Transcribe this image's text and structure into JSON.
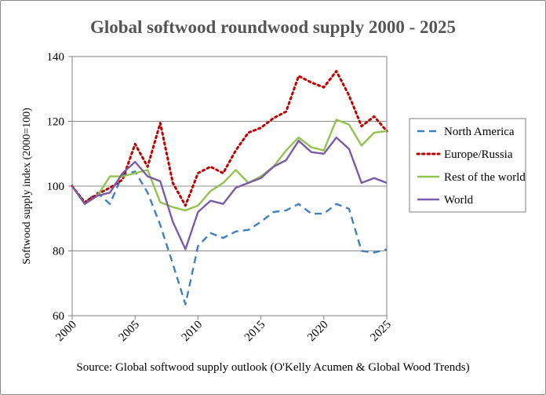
{
  "chart_data": {
    "type": "line",
    "title": "Global softwood roundwood supply 2000 - 2025",
    "ylabel": "Softwood supply index (2000=100)",
    "xlabel": "",
    "source": "Source: Global softwood supply outlook (O'Kelly Acumen & Global Wood Trends)",
    "xlim": [
      2000,
      2025
    ],
    "ylim": [
      60,
      140
    ],
    "xticks": [
      "2000",
      "2005",
      "2010",
      "2015",
      "2020",
      "2025"
    ],
    "yticks": [
      "60",
      "80",
      "100",
      "120",
      "140"
    ],
    "grid": "horizontal",
    "legend_position": "right",
    "x": [
      2000,
      2001,
      2002,
      2003,
      2004,
      2005,
      2006,
      2007,
      2008,
      2009,
      2010,
      2011,
      2012,
      2013,
      2014,
      2015,
      2016,
      2017,
      2018,
      2019,
      2020,
      2021,
      2022,
      2023,
      2024,
      2025
    ],
    "series": [
      {
        "name": "North America",
        "color": "#3f7fc4",
        "dash": "dashed",
        "values": [
          100,
          95,
          98,
          94.5,
          103.5,
          104.5,
          98,
          88,
          76,
          63.5,
          81.5,
          85.5,
          84,
          86,
          86.5,
          89,
          92,
          92.5,
          94.5,
          91.5,
          91.5,
          94.5,
          93,
          80,
          79.5,
          80.5
        ]
      },
      {
        "name": "Europe/Russia",
        "color": "#c00000",
        "dash": "dotted",
        "values": [
          100,
          95,
          97.5,
          99.5,
          102,
          113,
          106,
          119.5,
          101,
          94,
          104,
          106,
          104,
          111,
          116.5,
          118,
          121,
          123,
          134,
          132,
          130.5,
          135.5,
          128,
          118.5,
          121.5,
          117
        ]
      },
      {
        "name": "Rest of the world",
        "color": "#92c34e",
        "dash": "solid",
        "values": [
          100,
          94.5,
          97,
          103,
          103,
          104,
          105,
          95,
          93.5,
          92.5,
          94,
          98.5,
          101,
          105,
          101,
          103,
          106,
          111,
          115,
          112,
          111,
          120.5,
          119,
          112.5,
          116.5,
          117
        ]
      },
      {
        "name": "World",
        "color": "#7a5ba8",
        "dash": "solid",
        "values": [
          100,
          94.5,
          97,
          98,
          104,
          107.5,
          103,
          101.5,
          89,
          80.5,
          92,
          95.5,
          94.5,
          99.5,
          101,
          102.5,
          106,
          108,
          114,
          110.5,
          110,
          115,
          111.5,
          101,
          102.5,
          101
        ]
      }
    ]
  }
}
